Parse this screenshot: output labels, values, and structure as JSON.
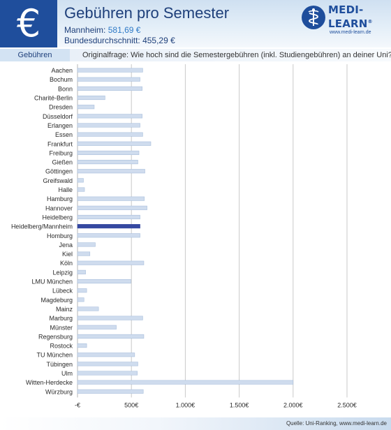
{
  "header": {
    "currency_symbol": "€",
    "title": "Gebühren pro Semester",
    "mannheim_label": "Mannheim:",
    "mannheim_value": "581,69 €",
    "average_label": "Bundesdurchschnitt:",
    "average_value": "455,29 €"
  },
  "logo": {
    "line1": "MEDI-",
    "line2": "LEARN",
    "registered": "®",
    "url": "www.medi-learn.de",
    "icon": "caduceus-icon"
  },
  "subheader": {
    "category": "Gebühren",
    "question": "Originalfrage: Wie hoch sind die Semestergebühren (inkl. Studiengebühren) an deiner Uni?"
  },
  "footer": {
    "source": "Quelle: Uni-Ranking, www.medi-learn.de"
  },
  "colors": {
    "bar_fill": "#cfdcee",
    "bar_border": "#a9bfdc",
    "highlight_bar": "#3548a0",
    "brand_blue": "#1f4e9c"
  },
  "chart_data": {
    "type": "bar",
    "orientation": "horizontal",
    "categories": [
      "Aachen",
      "Bochum",
      "Bonn",
      "Charité-Berlin",
      "Dresden",
      "Düsseldorf",
      "Erlangen",
      "Essen",
      "Frankfurt",
      "Freiburg",
      "Gießen",
      "Göttingen",
      "Greifswald",
      "Halle",
      "Hamburg",
      "Hannover",
      "Heidelberg",
      "Heidelberg/Mannheim",
      "Homburg",
      "Jena",
      "Kiel",
      "Köln",
      "Leipzig",
      "LMU München",
      "Lübeck",
      "Magdeburg",
      "Mainz",
      "Marburg",
      "Münster",
      "Regensburg",
      "Rostock",
      "TU München",
      "Tübingen",
      "Ulm",
      "Witten-Herdecke",
      "Würzburg"
    ],
    "values": [
      605,
      580,
      600,
      255,
      155,
      600,
      580,
      605,
      680,
      570,
      560,
      625,
      55,
      65,
      620,
      645,
      580,
      580,
      580,
      165,
      115,
      615,
      75,
      495,
      85,
      60,
      195,
      605,
      360,
      615,
      85,
      530,
      560,
      555,
      2000,
      610
    ],
    "highlight": "Heidelberg/Mannheim",
    "xlim": [
      0,
      2500
    ],
    "xticks": [
      0,
      500,
      1000,
      1500,
      2000,
      2500
    ],
    "xtick_labels": [
      "-€",
      "500€",
      "1.000€",
      "1.500€",
      "2.000€",
      "2.500€"
    ],
    "grid": true
  }
}
